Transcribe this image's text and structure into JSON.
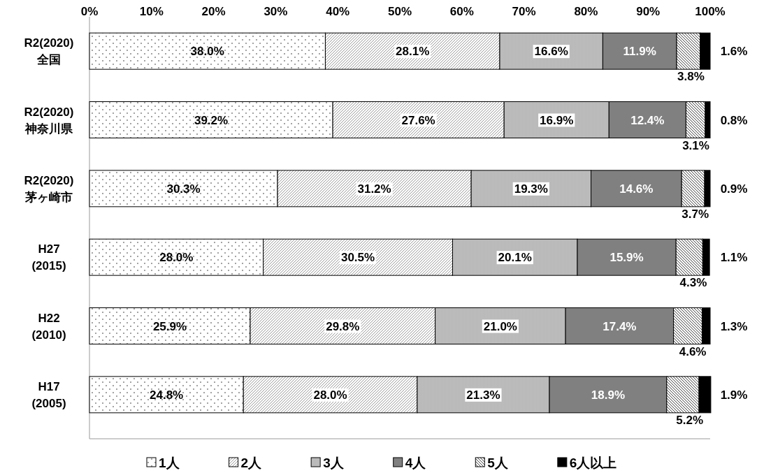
{
  "chart_data": {
    "type": "bar",
    "orientation": "horizontal",
    "stacked": true,
    "legend": "bottom",
    "grid": false,
    "categories": [
      "R2(2020)\n全国",
      "R2(2020)\n神奈川県",
      "R2(2020)\n茅ヶ崎市",
      "H27\n(2015)",
      "H22\n(2010)",
      "H17\n(2005)"
    ],
    "xlim": [
      0,
      100
    ],
    "xticks": [
      {
        "value": 0,
        "label": "0%"
      },
      {
        "value": 10,
        "label": "10%"
      },
      {
        "value": 20,
        "label": "20%"
      },
      {
        "value": 30,
        "label": "30%"
      },
      {
        "value": 40,
        "label": "40%"
      },
      {
        "value": 50,
        "label": "50%"
      },
      {
        "value": 60,
        "label": "60%"
      },
      {
        "value": 70,
        "label": "70%"
      },
      {
        "value": 80,
        "label": "80%"
      },
      {
        "value": 90,
        "label": "90%"
      },
      {
        "value": 100,
        "label": "100%"
      }
    ],
    "series": [
      {
        "name": "1人",
        "color": "#ffffff",
        "values": [
          38.0,
          39.2,
          30.3,
          28.0,
          25.9,
          24.8
        ],
        "value_labels": [
          "38.0%",
          "39.2%",
          "30.3%",
          "28.0%",
          "25.9%",
          "24.8%"
        ]
      },
      {
        "name": "2人",
        "color": "#ffffff",
        "values": [
          28.1,
          27.6,
          31.2,
          30.5,
          29.8,
          28.0
        ],
        "value_labels": [
          "28.1%",
          "27.6%",
          "31.2%",
          "30.5%",
          "29.8%",
          "28.0%"
        ]
      },
      {
        "name": "3人",
        "color": "#ffffff",
        "values": [
          16.6,
          16.9,
          19.3,
          20.1,
          21.0,
          21.3
        ],
        "value_labels": [
          "16.6%",
          "16.9%",
          "19.3%",
          "20.1%",
          "21.0%",
          "21.3%"
        ]
      },
      {
        "name": "4人",
        "color": "#808080",
        "values": [
          11.9,
          12.4,
          14.6,
          15.9,
          17.4,
          18.9
        ],
        "value_labels": [
          "11.9%",
          "12.4%",
          "14.6%",
          "15.9%",
          "17.4%",
          "18.9%"
        ]
      },
      {
        "name": "5人",
        "color": "#ffffff",
        "values": [
          3.8,
          3.1,
          3.7,
          4.3,
          4.6,
          5.2
        ],
        "value_labels": [
          "3.8%",
          "3.1%",
          "3.7%",
          "4.3%",
          "4.6%",
          "5.2%"
        ]
      },
      {
        "name": "6人以上",
        "color": "#000000",
        "values": [
          1.6,
          0.8,
          0.9,
          1.1,
          1.3,
          1.9
        ],
        "value_labels": [
          "1.6%",
          "0.8%",
          "0.9%",
          "1.1%",
          "1.3%",
          "1.9%"
        ]
      }
    ]
  }
}
